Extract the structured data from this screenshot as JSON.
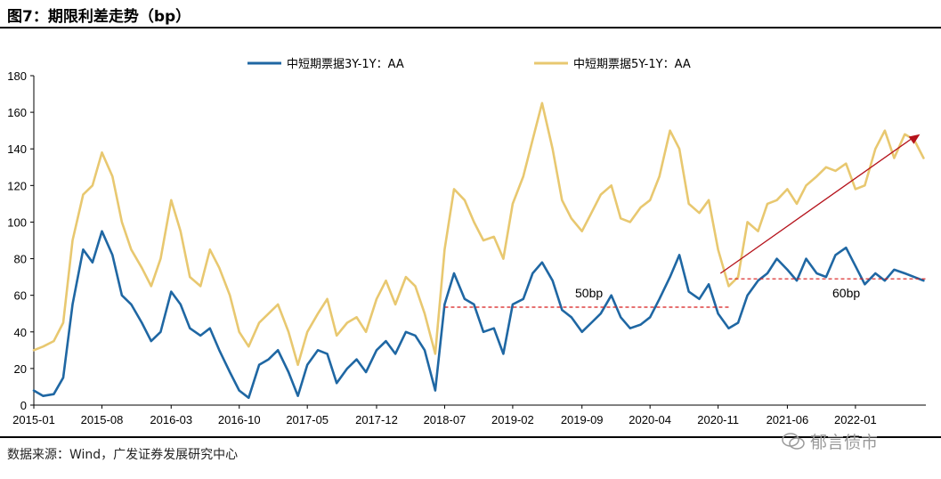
{
  "title": "图7：期限利差走势（bp）",
  "source": "数据来源：Wind，广发证券发展研究中心",
  "watermark": "郁言债市",
  "colors": {
    "series1": "#1f67a3",
    "series2": "#e8c870",
    "ref_line": "#d71a1a",
    "arrow": "#b5121b"
  },
  "chart_data": {
    "type": "line",
    "title": "期限利差走势（bp）",
    "ylabel": "bp",
    "ylim": [
      0,
      180
    ],
    "yticks": [
      0,
      20,
      40,
      60,
      80,
      100,
      120,
      140,
      160,
      180
    ],
    "xlim": [
      2015.0,
      2022.6
    ],
    "xticks": [
      {
        "label": "2015-01",
        "value": 2015.0
      },
      {
        "label": "2015-08",
        "value": 2015.58
      },
      {
        "label": "2016-03",
        "value": 2016.17
      },
      {
        "label": "2016-10",
        "value": 2016.75
      },
      {
        "label": "2017-05",
        "value": 2017.33
      },
      {
        "label": "2017-12",
        "value": 2017.92
      },
      {
        "label": "2018-07",
        "value": 2018.5
      },
      {
        "label": "2019-02",
        "value": 2019.08
      },
      {
        "label": "2019-09",
        "value": 2019.67
      },
      {
        "label": "2020-04",
        "value": 2020.25
      },
      {
        "label": "2020-11",
        "value": 2020.83
      },
      {
        "label": "2021-06",
        "value": 2021.42
      },
      {
        "label": "2022-01",
        "value": 2022.0
      }
    ],
    "series": [
      {
        "name": "中短期票据3Y-1Y：AA",
        "color": "#1f67a3",
        "x": [
          2015.0,
          2015.08,
          2015.17,
          2015.25,
          2015.33,
          2015.42,
          2015.5,
          2015.58,
          2015.67,
          2015.75,
          2015.83,
          2015.92,
          2016.0,
          2016.08,
          2016.17,
          2016.25,
          2016.33,
          2016.42,
          2016.5,
          2016.58,
          2016.67,
          2016.75,
          2016.83,
          2016.92,
          2017.0,
          2017.08,
          2017.17,
          2017.25,
          2017.33,
          2017.42,
          2017.5,
          2017.58,
          2017.67,
          2017.75,
          2017.83,
          2017.92,
          2018.0,
          2018.08,
          2018.17,
          2018.25,
          2018.33,
          2018.42,
          2018.5,
          2018.58,
          2018.67,
          2018.75,
          2018.83,
          2018.92,
          2019.0,
          2019.08,
          2019.17,
          2019.25,
          2019.33,
          2019.42,
          2019.5,
          2019.58,
          2019.67,
          2019.75,
          2019.83,
          2019.92,
          2020.0,
          2020.08,
          2020.17,
          2020.25,
          2020.33,
          2020.42,
          2020.5,
          2020.58,
          2020.67,
          2020.75,
          2020.83,
          2020.92,
          2021.0,
          2021.08,
          2021.17,
          2021.25,
          2021.33,
          2021.42,
          2021.5,
          2021.58,
          2021.67,
          2021.75,
          2021.83,
          2021.92,
          2022.0,
          2022.08,
          2022.17,
          2022.25,
          2022.33,
          2022.42,
          2022.5,
          2022.58
        ],
        "values": [
          8,
          5,
          6,
          15,
          55,
          85,
          78,
          95,
          82,
          60,
          55,
          45,
          35,
          40,
          62,
          55,
          42,
          38,
          42,
          30,
          18,
          8,
          4,
          22,
          25,
          30,
          18,
          5,
          22,
          30,
          28,
          12,
          20,
          25,
          18,
          30,
          35,
          28,
          40,
          38,
          30,
          8,
          55,
          72,
          58,
          55,
          40,
          42,
          28,
          55,
          58,
          72,
          78,
          68,
          52,
          48,
          40,
          45,
          50,
          60,
          48,
          42,
          44,
          48,
          58,
          70,
          82,
          62,
          58,
          66,
          50,
          42,
          45,
          60,
          68,
          72,
          80,
          74,
          68,
          80,
          72,
          70,
          82,
          86,
          76,
          66,
          72,
          68,
          74,
          72,
          70,
          68
        ]
      },
      {
        "name": "中短期票据5Y-1Y：AA",
        "color": "#e8c870",
        "x": [
          2015.0,
          2015.08,
          2015.17,
          2015.25,
          2015.33,
          2015.42,
          2015.5,
          2015.58,
          2015.67,
          2015.75,
          2015.83,
          2015.92,
          2016.0,
          2016.08,
          2016.17,
          2016.25,
          2016.33,
          2016.42,
          2016.5,
          2016.58,
          2016.67,
          2016.75,
          2016.83,
          2016.92,
          2017.0,
          2017.08,
          2017.17,
          2017.25,
          2017.33,
          2017.42,
          2017.5,
          2017.58,
          2017.67,
          2017.75,
          2017.83,
          2017.92,
          2018.0,
          2018.08,
          2018.17,
          2018.25,
          2018.33,
          2018.42,
          2018.5,
          2018.58,
          2018.67,
          2018.75,
          2018.83,
          2018.92,
          2019.0,
          2019.08,
          2019.17,
          2019.25,
          2019.33,
          2019.42,
          2019.5,
          2019.58,
          2019.67,
          2019.75,
          2019.83,
          2019.92,
          2020.0,
          2020.08,
          2020.17,
          2020.25,
          2020.33,
          2020.42,
          2020.5,
          2020.58,
          2020.67,
          2020.75,
          2020.83,
          2020.92,
          2021.0,
          2021.08,
          2021.17,
          2021.25,
          2021.33,
          2021.42,
          2021.5,
          2021.58,
          2021.67,
          2021.75,
          2021.83,
          2021.92,
          2022.0,
          2022.08,
          2022.17,
          2022.25,
          2022.33,
          2022.42,
          2022.5,
          2022.58
        ],
        "values": [
          30,
          32,
          35,
          45,
          90,
          115,
          120,
          138,
          125,
          100,
          85,
          75,
          65,
          80,
          112,
          95,
          70,
          65,
          85,
          75,
          60,
          40,
          32,
          45,
          50,
          55,
          40,
          22,
          40,
          50,
          58,
          38,
          45,
          48,
          40,
          58,
          68,
          55,
          70,
          65,
          50,
          28,
          85,
          118,
          112,
          100,
          90,
          92,
          80,
          110,
          125,
          145,
          165,
          140,
          112,
          102,
          95,
          105,
          115,
          120,
          102,
          100,
          108,
          112,
          125,
          150,
          140,
          110,
          105,
          112,
          85,
          65,
          70,
          100,
          95,
          110,
          112,
          118,
          110,
          120,
          125,
          130,
          128,
          132,
          118,
          120,
          140,
          150,
          135,
          148,
          145,
          135
        ]
      }
    ],
    "reference_lines": [
      {
        "label": "50bp",
        "y": 53.5,
        "x_start": 2018.5,
        "x_end": 2020.92
      },
      {
        "label": "60bp",
        "y": 69,
        "x_start": 2020.92,
        "x_end": 2022.6
      }
    ],
    "arrow": {
      "from": {
        "x": 2020.85,
        "y": 72
      },
      "to": {
        "x": 2022.55,
        "y": 148
      }
    },
    "legend": {
      "position": "top"
    }
  }
}
